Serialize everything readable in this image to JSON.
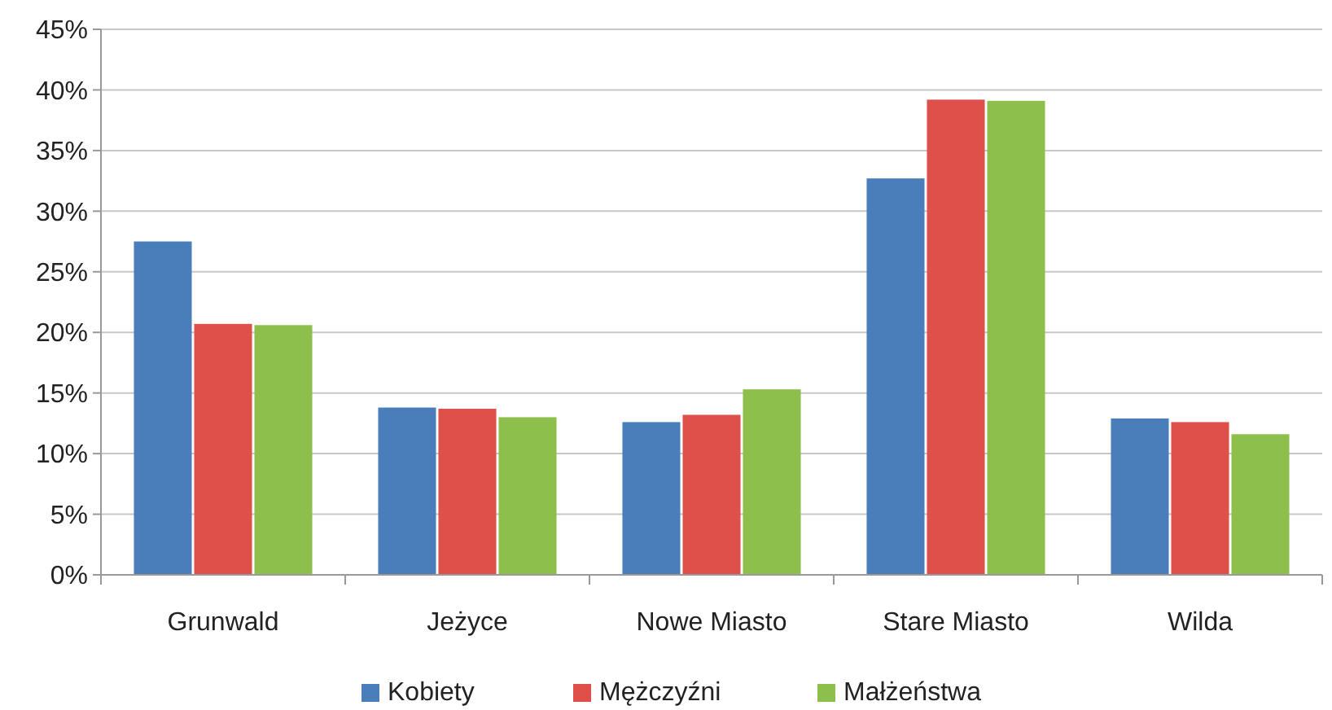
{
  "chart_data": {
    "type": "bar",
    "categories": [
      "Grunwald",
      "Jeżyce",
      "Nowe Miasto",
      "Stare Miasto",
      "Wilda"
    ],
    "series": [
      {
        "name": "Kobiety",
        "color": "#4a7ebb",
        "values": [
          27.5,
          13.8,
          12.6,
          32.7,
          12.9
        ]
      },
      {
        "name": "Mężczyźni",
        "color": "#e0504a",
        "values": [
          20.7,
          13.7,
          13.2,
          39.2,
          12.6
        ]
      },
      {
        "name": "Małżeństwa",
        "color": "#8cbf4c",
        "values": [
          20.6,
          13.0,
          15.3,
          39.1,
          11.6
        ]
      }
    ],
    "ylim": [
      0,
      45
    ],
    "yticks": [
      {
        "value": 0,
        "label": "0%"
      },
      {
        "value": 5,
        "label": "5%"
      },
      {
        "value": 10,
        "label": "10%"
      },
      {
        "value": 15,
        "label": "15%"
      },
      {
        "value": 20,
        "label": "20%"
      },
      {
        "value": 25,
        "label": "25%"
      },
      {
        "value": 30,
        "label": "30%"
      },
      {
        "value": 35,
        "label": "35%"
      },
      {
        "value": 40,
        "label": "40%"
      },
      {
        "value": 45,
        "label": "45%"
      }
    ],
    "grid": "y",
    "legend": "bottom"
  }
}
